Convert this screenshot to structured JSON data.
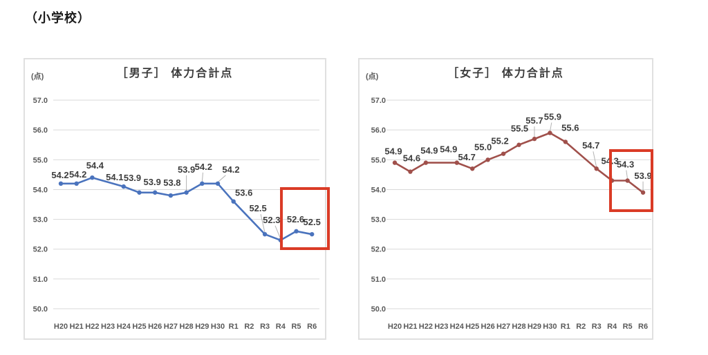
{
  "page_title": "（小学校）",
  "chart_data": [
    {
      "type": "line",
      "title": "［男子］ 体力合計点",
      "unit": "(点)",
      "series_name": "男子 体力合計点",
      "categories": [
        "H20",
        "H21",
        "H22",
        "H23",
        "H24",
        "H25",
        "H26",
        "H27",
        "H28",
        "H29",
        "H30",
        "R1",
        "R2",
        "R3",
        "R4",
        "R5",
        "R6"
      ],
      "values": [
        54.2,
        54.2,
        54.4,
        null,
        54.1,
        53.9,
        53.9,
        53.8,
        53.9,
        54.2,
        54.2,
        53.6,
        null,
        52.5,
        52.3,
        52.6,
        52.5
      ],
      "ylim": [
        50.0,
        57.0
      ],
      "yticks": [
        "57.0",
        "56.0",
        "55.0",
        "54.0",
        "53.0",
        "52.0",
        "51.0",
        "50.0"
      ],
      "grid": true,
      "legend": "none",
      "line_color": "#4a73bd",
      "highlight_box": {
        "color": "#da3b26",
        "from": "R5",
        "to": "R6"
      }
    },
    {
      "type": "line",
      "title": "［女子］ 体力合計点",
      "unit": "(点)",
      "series_name": "女子 体力合計点",
      "categories": [
        "H20",
        "H21",
        "H22",
        "H23",
        "H24",
        "H25",
        "H26",
        "H27",
        "H28",
        "H29",
        "H30",
        "R1",
        "R2",
        "R3",
        "R4",
        "R5",
        "R6"
      ],
      "values": [
        54.9,
        54.6,
        54.9,
        null,
        54.9,
        54.7,
        55.0,
        55.2,
        55.5,
        55.7,
        55.9,
        55.6,
        null,
        54.7,
        54.3,
        54.3,
        53.9
      ],
      "ylim": [
        50.0,
        57.0
      ],
      "yticks": [
        "57.0",
        "56.0",
        "55.0",
        "54.0",
        "53.0",
        "52.0",
        "51.0",
        "50.0"
      ],
      "grid": true,
      "legend": "none",
      "line_color": "#a0504b",
      "highlight_box": {
        "color": "#da3b26",
        "from": "R5",
        "to": "R6"
      }
    }
  ]
}
